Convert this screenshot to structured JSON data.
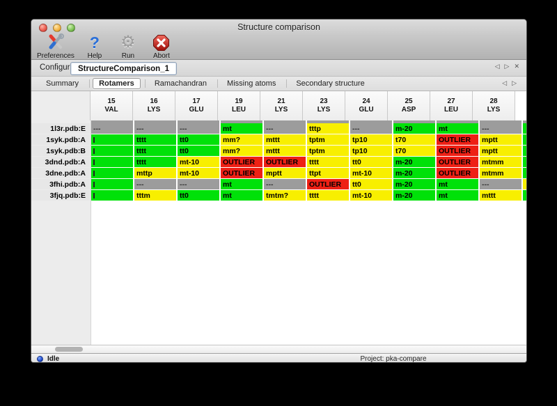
{
  "window": {
    "title": "Structure comparison"
  },
  "toolbar": {
    "items": [
      {
        "label": "Preferences",
        "icon": "tools-icon"
      },
      {
        "label": "Help",
        "icon": "help-icon"
      },
      {
        "label": "Run",
        "icon": "gear-icon"
      },
      {
        "label": "Abort",
        "icon": "abort-icon"
      }
    ]
  },
  "configure": {
    "label": "Configure",
    "tab": "StructureComparison_1",
    "nav": [
      {
        "name": "chevron-left-icon",
        "glyph": "◁"
      },
      {
        "name": "chevron-right-icon",
        "glyph": "▷"
      },
      {
        "name": "close-icon",
        "glyph": "✕"
      }
    ]
  },
  "tabs": {
    "items": [
      {
        "label": "Summary",
        "selected": false
      },
      {
        "label": "Rotamers",
        "selected": true
      },
      {
        "label": "Ramachandran",
        "selected": false
      },
      {
        "label": "Missing atoms",
        "selected": false
      },
      {
        "label": "Secondary structure",
        "selected": false
      }
    ],
    "nav": [
      {
        "name": "chevron-left-icon",
        "glyph": "◁"
      },
      {
        "name": "chevron-right-icon",
        "glyph": "▷"
      }
    ]
  },
  "colors": {
    "green": "#00e109",
    "yellow": "#f8ef00",
    "red": "#ee2015",
    "gray": "#9c9c9c"
  },
  "table": {
    "columns": [
      {
        "num": "15",
        "res": "VAL"
      },
      {
        "num": "16",
        "res": "LYS"
      },
      {
        "num": "17",
        "res": "GLU"
      },
      {
        "num": "19",
        "res": "LEU"
      },
      {
        "num": "21",
        "res": "LYS"
      },
      {
        "num": "23",
        "res": "LYS"
      },
      {
        "num": "24",
        "res": "GLU"
      },
      {
        "num": "25",
        "res": "ASP"
      },
      {
        "num": "27",
        "res": "LEU"
      },
      {
        "num": "28",
        "res": "LYS"
      }
    ],
    "rows": [
      {
        "label": "1l3r.pdb:E",
        "partial": "green",
        "cells": [
          {
            "text": "---",
            "color": "gray"
          },
          {
            "text": "---",
            "color": "gray"
          },
          {
            "text": "---",
            "color": "gray"
          },
          {
            "text": "mt",
            "color": "green"
          },
          {
            "text": "---",
            "color": "gray"
          },
          {
            "text": "tttp",
            "color": "yellow"
          },
          {
            "text": "---",
            "color": "gray"
          },
          {
            "text": "m-20",
            "color": "green"
          },
          {
            "text": "mt",
            "color": "green"
          },
          {
            "text": "---",
            "color": "gray"
          }
        ]
      },
      {
        "label": "1syk.pdb:A",
        "partial": "green",
        "cells": [
          {
            "text": "",
            "color": "green",
            "clip": true
          },
          {
            "text": "tttt",
            "color": "green"
          },
          {
            "text": "tt0",
            "color": "green"
          },
          {
            "text": "mm?",
            "color": "yellow"
          },
          {
            "text": "mttt",
            "color": "yellow"
          },
          {
            "text": "tptm",
            "color": "yellow"
          },
          {
            "text": "tp10",
            "color": "yellow"
          },
          {
            "text": "t70",
            "color": "yellow"
          },
          {
            "text": "OUTLIER",
            "color": "red"
          },
          {
            "text": "mptt",
            "color": "yellow"
          }
        ]
      },
      {
        "label": "1syk.pdb:B",
        "partial": "green",
        "cells": [
          {
            "text": "",
            "color": "green",
            "clip": true
          },
          {
            "text": "tttt",
            "color": "green"
          },
          {
            "text": "tt0",
            "color": "green"
          },
          {
            "text": "mm?",
            "color": "yellow"
          },
          {
            "text": "mttt",
            "color": "yellow"
          },
          {
            "text": "tptm",
            "color": "yellow"
          },
          {
            "text": "tp10",
            "color": "yellow"
          },
          {
            "text": "t70",
            "color": "yellow"
          },
          {
            "text": "OUTLIER",
            "color": "red"
          },
          {
            "text": "mptt",
            "color": "yellow"
          }
        ]
      },
      {
        "label": "3dnd.pdb:A",
        "partial": "green",
        "cells": [
          {
            "text": "",
            "color": "green",
            "clip": true
          },
          {
            "text": "tttt",
            "color": "green"
          },
          {
            "text": "mt-10",
            "color": "yellow"
          },
          {
            "text": "OUTLIER",
            "color": "red"
          },
          {
            "text": "OUTLIER",
            "color": "red"
          },
          {
            "text": "tttt",
            "color": "yellow"
          },
          {
            "text": "tt0",
            "color": "yellow"
          },
          {
            "text": "m-20",
            "color": "green"
          },
          {
            "text": "OUTLIER",
            "color": "red"
          },
          {
            "text": "mtmm",
            "color": "yellow"
          }
        ]
      },
      {
        "label": "3dne.pdb:A",
        "partial": "green",
        "cells": [
          {
            "text": "",
            "color": "green",
            "clip": true
          },
          {
            "text": "mttp",
            "color": "yellow"
          },
          {
            "text": "mt-10",
            "color": "yellow"
          },
          {
            "text": "OUTLIER",
            "color": "red"
          },
          {
            "text": "mptt",
            "color": "yellow"
          },
          {
            "text": "ttpt",
            "color": "yellow"
          },
          {
            "text": "mt-10",
            "color": "yellow"
          },
          {
            "text": "m-20",
            "color": "green"
          },
          {
            "text": "OUTLIER",
            "color": "red"
          },
          {
            "text": "mtmm",
            "color": "yellow"
          }
        ]
      },
      {
        "label": "3fhi.pdb:A",
        "partial": "yellow",
        "cells": [
          {
            "text": "",
            "color": "green",
            "clip": true
          },
          {
            "text": "---",
            "color": "gray"
          },
          {
            "text": "---",
            "color": "gray"
          },
          {
            "text": "mt",
            "color": "green"
          },
          {
            "text": "---",
            "color": "gray"
          },
          {
            "text": "OUTLIER",
            "color": "red"
          },
          {
            "text": "tt0",
            "color": "yellow"
          },
          {
            "text": "m-20",
            "color": "green"
          },
          {
            "text": "mt",
            "color": "green"
          },
          {
            "text": "---",
            "color": "gray"
          }
        ]
      },
      {
        "label": "3fjq.pdb:E",
        "partial": "green",
        "cells": [
          {
            "text": "",
            "color": "green",
            "clip": true
          },
          {
            "text": "tttm",
            "color": "yellow"
          },
          {
            "text": "tt0",
            "color": "green"
          },
          {
            "text": "mt",
            "color": "green"
          },
          {
            "text": "tmtm?",
            "color": "yellow"
          },
          {
            "text": "tttt",
            "color": "yellow"
          },
          {
            "text": "mt-10",
            "color": "yellow"
          },
          {
            "text": "m-20",
            "color": "green"
          },
          {
            "text": "mt",
            "color": "green"
          },
          {
            "text": "mttt",
            "color": "yellow"
          }
        ]
      }
    ]
  },
  "status": {
    "left": "Idle",
    "right": "Project: pka-compare"
  }
}
